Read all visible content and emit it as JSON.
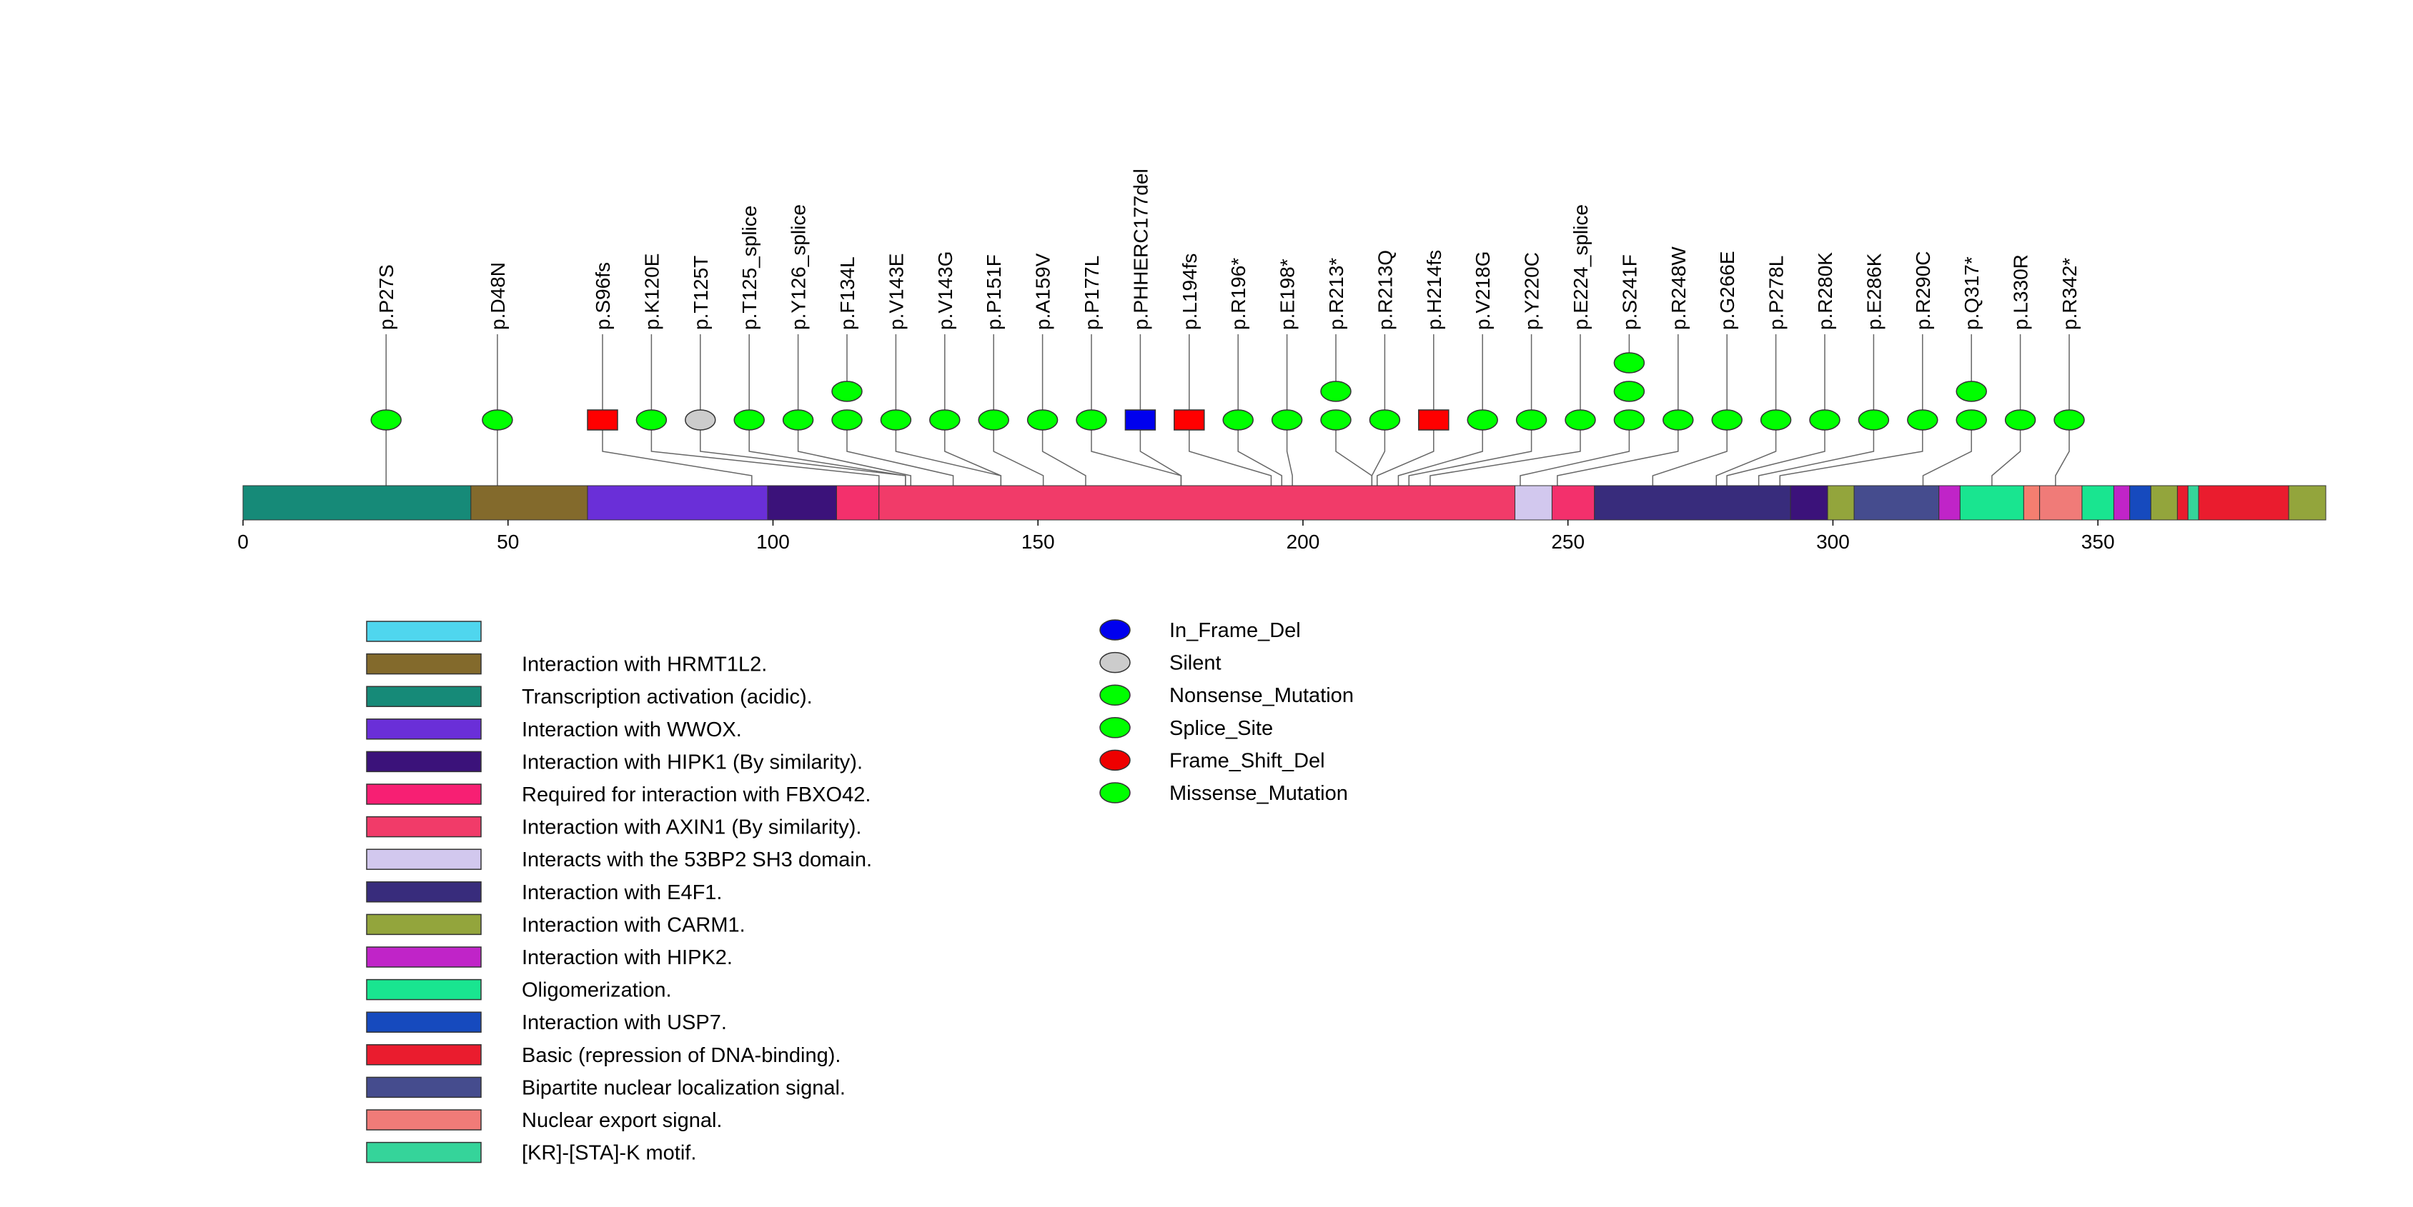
{
  "axis": {
    "min": 0,
    "max": 393,
    "ticks": [
      0,
      50,
      100,
      150,
      200,
      250,
      300,
      350
    ]
  },
  "colors": {
    "missense": "#00ff00",
    "nonsense": "#00ff00",
    "splice": "#00ff00",
    "silent": "#cccccc",
    "frameshift": "#ff0000",
    "inframe": "#0000ee",
    "line": "#666666",
    "outline": "#333333"
  },
  "domains": [
    {
      "start": 0,
      "end": 43,
      "color": "#168a78"
    },
    {
      "start": 43,
      "end": 65,
      "color": "#836a2c"
    },
    {
      "start": 65,
      "end": 99,
      "color": "#6a2fd8"
    },
    {
      "start": 99,
      "end": 112,
      "color": "#3b127a"
    },
    {
      "start": 112,
      "end": 120,
      "color": "#f3306c"
    },
    {
      "start": 120,
      "end": 240,
      "color": "#f13b69"
    },
    {
      "start": 240,
      "end": 247,
      "color": "#d2c8ee"
    },
    {
      "start": 247,
      "end": 255,
      "color": "#f3306c"
    },
    {
      "start": 255,
      "end": 292,
      "color": "#382c7c"
    },
    {
      "start": 292,
      "end": 299,
      "color": "#3b127a"
    },
    {
      "start": 299,
      "end": 304,
      "color": "#93a53c"
    },
    {
      "start": 304,
      "end": 320,
      "color": "#454c8e"
    },
    {
      "start": 320,
      "end": 324,
      "color": "#c024c8"
    },
    {
      "start": 324,
      "end": 336,
      "color": "#19e590"
    },
    {
      "start": 336,
      "end": 339,
      "color": "#f47e70"
    },
    {
      "start": 339,
      "end": 347,
      "color": "#f07b78"
    },
    {
      "start": 347,
      "end": 353,
      "color": "#19e590"
    },
    {
      "start": 353,
      "end": 356,
      "color": "#c024c8"
    },
    {
      "start": 356,
      "end": 360,
      "color": "#164abe"
    },
    {
      "start": 360,
      "end": 365,
      "color": "#93a53c"
    },
    {
      "start": 365,
      "end": 367,
      "color": "#ea1c2e"
    },
    {
      "start": 367,
      "end": 369,
      "color": "#35d49a"
    },
    {
      "start": 369,
      "end": 386,
      "color": "#ea1c2e"
    },
    {
      "start": 386,
      "end": 393,
      "color": "#93a53c"
    }
  ],
  "mutations": [
    {
      "label": "p.P27S",
      "pos": 27,
      "count": 1,
      "type": "missense"
    },
    {
      "label": "p.D48N",
      "pos": 48,
      "count": 1,
      "type": "missense"
    },
    {
      "label": "p.S96fs",
      "pos": 96,
      "count": 1,
      "type": "frameshift"
    },
    {
      "label": "p.K120E",
      "pos": 120,
      "count": 1,
      "type": "missense"
    },
    {
      "label": "p.T125T",
      "pos": 125,
      "count": 1,
      "type": "silent"
    },
    {
      "label": "p.T125_splice",
      "pos": 125,
      "count": 1,
      "type": "splice"
    },
    {
      "label": "p.Y126_splice",
      "pos": 126,
      "count": 1,
      "type": "splice"
    },
    {
      "label": "p.F134L",
      "pos": 134,
      "count": 2,
      "type": "missense"
    },
    {
      "label": "p.V143E",
      "pos": 143,
      "count": 1,
      "type": "missense"
    },
    {
      "label": "p.V143G",
      "pos": 143,
      "count": 1,
      "type": "missense"
    },
    {
      "label": "p.P151F",
      "pos": 151,
      "count": 1,
      "type": "missense"
    },
    {
      "label": "p.A159V",
      "pos": 159,
      "count": 1,
      "type": "missense"
    },
    {
      "label": "p.P177L",
      "pos": 177,
      "count": 1,
      "type": "missense"
    },
    {
      "label": "p.PHHERC177del",
      "pos": 177,
      "count": 1,
      "type": "inframe"
    },
    {
      "label": "p.L194fs",
      "pos": 194,
      "count": 1,
      "type": "frameshift"
    },
    {
      "label": "p.R196*",
      "pos": 196,
      "count": 1,
      "type": "nonsense"
    },
    {
      "label": "p.E198*",
      "pos": 198,
      "count": 1,
      "type": "nonsense"
    },
    {
      "label": "p.R213*",
      "pos": 213,
      "count": 2,
      "type": "nonsense"
    },
    {
      "label": "p.R213Q",
      "pos": 213,
      "count": 1,
      "type": "missense"
    },
    {
      "label": "p.H214fs",
      "pos": 214,
      "count": 1,
      "type": "frameshift"
    },
    {
      "label": "p.V218G",
      "pos": 218,
      "count": 1,
      "type": "missense"
    },
    {
      "label": "p.Y220C",
      "pos": 220,
      "count": 1,
      "type": "missense"
    },
    {
      "label": "p.E224_splice",
      "pos": 224,
      "count": 1,
      "type": "splice"
    },
    {
      "label": "p.S241F",
      "pos": 241,
      "count": 3,
      "type": "missense"
    },
    {
      "label": "p.R248W",
      "pos": 248,
      "count": 1,
      "type": "missense"
    },
    {
      "label": "p.G266E",
      "pos": 266,
      "count": 1,
      "type": "missense"
    },
    {
      "label": "p.P278L",
      "pos": 278,
      "count": 1,
      "type": "missense"
    },
    {
      "label": "p.R280K",
      "pos": 280,
      "count": 1,
      "type": "missense"
    },
    {
      "label": "p.E286K",
      "pos": 286,
      "count": 1,
      "type": "missense"
    },
    {
      "label": "p.R290C",
      "pos": 290,
      "count": 1,
      "type": "missense"
    },
    {
      "label": "p.Q317*",
      "pos": 317,
      "count": 2,
      "type": "nonsense"
    },
    {
      "label": "p.L330R",
      "pos": 330,
      "count": 1,
      "type": "missense"
    },
    {
      "label": "p.R342*",
      "pos": 342,
      "count": 1,
      "type": "nonsense"
    }
  ],
  "domain_legend": [
    {
      "label": "",
      "color": "#4fd6ee"
    },
    {
      "label": "Interaction with HRMT1L2.",
      "color": "#836a2c"
    },
    {
      "label": "Transcription activation (acidic).",
      "color": "#168a78"
    },
    {
      "label": "Interaction with WWOX.",
      "color": "#6a2fd8"
    },
    {
      "label": "Interaction with HIPK1 (By similarity).",
      "color": "#3b127a"
    },
    {
      "label": "Required for interaction with FBXO42.",
      "color": "#f71f73"
    },
    {
      "label": "Interaction with AXIN1 (By similarity).",
      "color": "#f13b69"
    },
    {
      "label": "Interacts with the 53BP2 SH3 domain.",
      "color": "#d2c8ee"
    },
    {
      "label": "Interaction with E4F1.",
      "color": "#382c7c"
    },
    {
      "label": "Interaction with CARM1.",
      "color": "#93a53c"
    },
    {
      "label": "Interaction with HIPK2.",
      "color": "#c024c8"
    },
    {
      "label": "Oligomerization.",
      "color": "#19e590"
    },
    {
      "label": "Interaction with USP7.",
      "color": "#164abe"
    },
    {
      "label": "Basic (repression of DNA-binding).",
      "color": "#ea1c2e"
    },
    {
      "label": "Bipartite nuclear localization signal.",
      "color": "#454c8e"
    },
    {
      "label": "Nuclear export signal.",
      "color": "#f07b78"
    },
    {
      "label": "[KR]-[STA]-K motif.",
      "color": "#35d49a"
    }
  ],
  "mutation_legend": [
    {
      "label": "In_Frame_Del",
      "color": "#0000ee"
    },
    {
      "label": "Silent",
      "color": "#cccccc"
    },
    {
      "label": "Nonsense_Mutation",
      "color": "#00ff00"
    },
    {
      "label": "Splice_Site",
      "color": "#00ff00"
    },
    {
      "label": "Frame_Shift_Del",
      "color": "#ee0000"
    },
    {
      "label": "Missense_Mutation",
      "color": "#00ff00"
    }
  ]
}
